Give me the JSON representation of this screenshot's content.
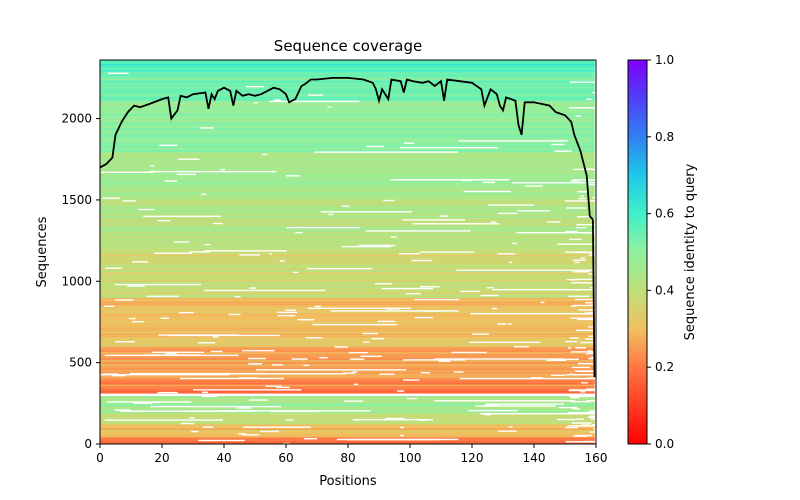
{
  "chart_data": {
    "type": "heatmap",
    "title": "Sequence coverage",
    "xlabel": "Positions",
    "ylabel": "Sequences",
    "xlim": [
      0,
      160
    ],
    "ylim": [
      0,
      2360
    ],
    "xticks": [
      "0",
      "20",
      "40",
      "60",
      "80",
      "100",
      "120",
      "140",
      "160"
    ],
    "yticks": [
      "0",
      "500",
      "1000",
      "1500",
      "2000"
    ],
    "colorbar": {
      "label": "Sequence identity to query",
      "range": [
        0,
        1
      ],
      "ticks": [
        "0.0",
        "0.2",
        "0.4",
        "0.6",
        "0.8",
        "1.0"
      ],
      "colormap": "rainbow_r"
    },
    "identity_bands": [
      {
        "y_from": 0,
        "y_to": 40,
        "identity": 0.2
      },
      {
        "y_from": 40,
        "y_to": 120,
        "identity": 0.3
      },
      {
        "y_from": 120,
        "y_to": 200,
        "identity": 0.4
      },
      {
        "y_from": 200,
        "y_to": 300,
        "identity": 0.46
      },
      {
        "y_from": 300,
        "y_to": 330,
        "identity": 0.18
      },
      {
        "y_from": 330,
        "y_to": 400,
        "identity": 0.22
      },
      {
        "y_from": 400,
        "y_to": 600,
        "identity": 0.26
      },
      {
        "y_from": 600,
        "y_to": 900,
        "identity": 0.3
      },
      {
        "y_from": 900,
        "y_to": 1200,
        "identity": 0.38
      },
      {
        "y_from": 1200,
        "y_to": 1500,
        "identity": 0.43
      },
      {
        "y_from": 1500,
        "y_to": 1800,
        "identity": 0.46
      },
      {
        "y_from": 1800,
        "y_to": 2100,
        "identity": 0.49
      },
      {
        "y_from": 2100,
        "y_to": 2280,
        "identity": 0.53
      },
      {
        "y_from": 2280,
        "y_to": 2360,
        "identity": 0.58
      }
    ],
    "coverage_line": {
      "x": [
        0,
        2,
        4,
        5,
        7,
        9,
        11,
        13,
        16,
        20,
        22,
        23,
        25,
        26,
        28,
        30,
        34,
        35,
        36,
        37,
        38,
        40,
        42,
        43,
        44,
        46,
        48,
        50,
        52,
        56,
        58,
        60,
        61,
        63,
        65,
        66,
        68,
        70,
        75,
        80,
        85,
        88,
        89,
        90,
        91,
        93,
        94,
        97,
        98,
        99,
        101,
        104,
        106,
        108,
        110,
        111,
        112,
        116,
        120,
        123,
        124,
        126,
        128,
        129,
        130,
        131,
        134,
        135,
        136,
        137,
        140,
        145,
        147,
        150,
        152,
        153,
        155,
        157,
        158,
        159
      ],
      "y": [
        1700,
        1720,
        1760,
        1900,
        1980,
        2040,
        2080,
        2070,
        2090,
        2120,
        2130,
        2000,
        2050,
        2140,
        2130,
        2150,
        2160,
        2060,
        2150,
        2120,
        2170,
        2190,
        2170,
        2080,
        2170,
        2140,
        2150,
        2140,
        2150,
        2190,
        2180,
        2150,
        2100,
        2120,
        2200,
        2210,
        2240,
        2240,
        2250,
        2250,
        2240,
        2220,
        2180,
        2110,
        2180,
        2120,
        2240,
        2230,
        2160,
        2240,
        2230,
        2220,
        2230,
        2200,
        2230,
        2110,
        2240,
        2230,
        2220,
        2180,
        2080,
        2180,
        2150,
        2080,
        2050,
        2130,
        2110,
        1960,
        1900,
        2100,
        2100,
        2080,
        2040,
        2020,
        1980,
        1900,
        1800,
        1650,
        1400,
        1380
      ]
    },
    "coverage_tail": {
      "x": [
        159,
        159.5
      ],
      "y": [
        1380,
        410
      ]
    },
    "grid": false,
    "legend": "none"
  }
}
